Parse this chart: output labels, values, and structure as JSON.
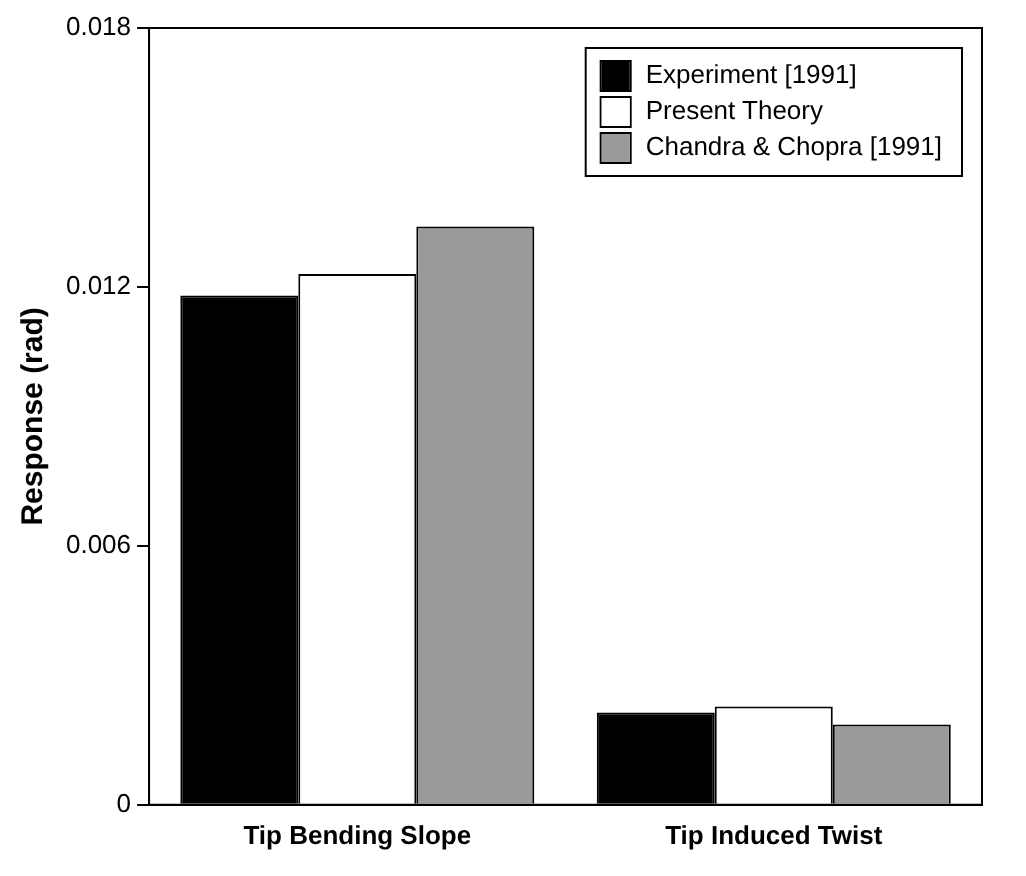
{
  "chart_data": {
    "type": "bar",
    "ylabel": "Response (rad)",
    "categories": [
      "Tip Bending Slope",
      "Tip Induced Twist"
    ],
    "series": [
      {
        "name": "Experiment [1991]",
        "color": "#000000",
        "values": [
          0.0118,
          0.00214
        ]
      },
      {
        "name": "Present Theory",
        "color": "#ffffff",
        "values": [
          0.0123,
          0.00228
        ]
      },
      {
        "name": "Chandra & Chopra [1991]",
        "color": "#9a9a9a",
        "values": [
          0.0134,
          0.00186
        ]
      }
    ],
    "ylim": [
      0,
      0.018
    ],
    "yticks": [
      0,
      0.006,
      0.012,
      0.018
    ],
    "grid": false,
    "legend": "top right"
  }
}
